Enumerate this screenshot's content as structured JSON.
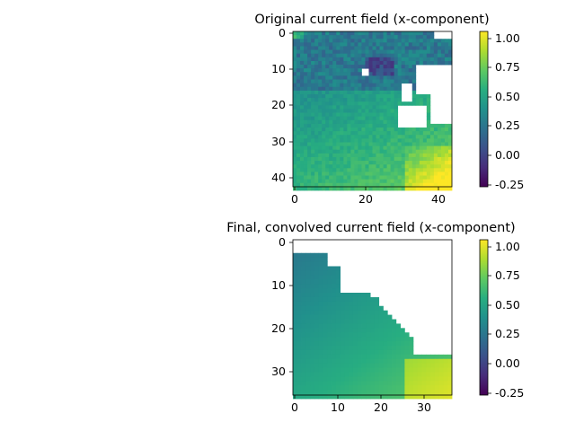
{
  "chart_data": [
    {
      "type": "heatmap",
      "title": "Original current field (x-component)",
      "x_ticks": [
        "0",
        "20",
        "40"
      ],
      "y_ticks": [
        "0",
        "10",
        "20",
        "30",
        "40"
      ],
      "xlim": [
        -0.5,
        43.5
      ],
      "ylim": [
        42.5,
        -0.5
      ],
      "grid_size": [
        44,
        43
      ],
      "colorbar": {
        "min": -0.3,
        "max": 1.03,
        "ticks": [
          "1.00",
          "0.75",
          "0.50",
          "0.25",
          "0.00",
          "-0.25"
        ]
      },
      "mask": "upper-right coastline region is blank (white)",
      "value_trend": "low values (~0.0–0.25) in upper part, increasing to ~0.5 in middle and up to ~1.0 near bottom-right"
    },
    {
      "type": "heatmap",
      "title": "Final, convolved current field (x-component)",
      "x_ticks": [
        "0",
        "10",
        "20",
        "30"
      ],
      "y_ticks": [
        "0",
        "10",
        "20",
        "30"
      ],
      "xlim": [
        -0.5,
        36.5
      ],
      "ylim": [
        35.5,
        -0.5
      ],
      "grid_size": [
        37,
        36
      ],
      "colorbar": {
        "min": -0.3,
        "max": 1.03,
        "ticks": [
          "1.00",
          "0.75",
          "0.50",
          "0.25",
          "0.00",
          "-0.25"
        ]
      },
      "mask": "upper-right triangular region and top rows are blank (white)",
      "value_trend": "smooth field ~0.25 at upper-left, increasing to ~0.5 in middle and ~0.8 near bottom-right"
    }
  ]
}
